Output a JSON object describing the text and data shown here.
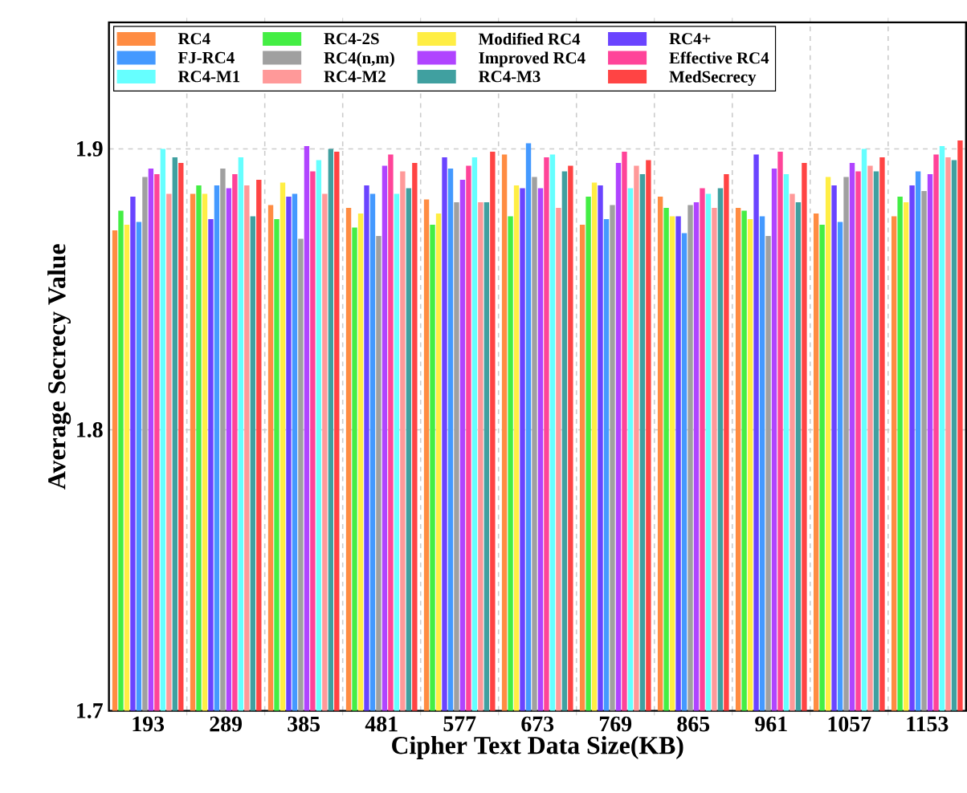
{
  "chart_data": {
    "type": "bar",
    "xlabel": "Cipher Text Data Size(KB)",
    "ylabel": "Average Secrecy Value",
    "categories": [
      "193",
      "289",
      "385",
      "481",
      "577",
      "673",
      "769",
      "865",
      "961",
      "1057",
      "1153"
    ],
    "ylim": [
      1.7,
      1.945
    ],
    "yticks": [
      1.7,
      1.8,
      1.9
    ],
    "grid": true,
    "legend": "top",
    "series": [
      {
        "name": "RC4",
        "color": "#ff8c42",
        "values": [
          1.871,
          1.884,
          1.88,
          1.879,
          1.882,
          1.898,
          1.873,
          1.883,
          1.879,
          1.877,
          1.876
        ]
      },
      {
        "name": "RC4-2S",
        "color": "#44ee44",
        "values": [
          1.878,
          1.887,
          1.875,
          1.872,
          1.873,
          1.876,
          1.883,
          1.879,
          1.878,
          1.873,
          1.883
        ]
      },
      {
        "name": "Modified RC4",
        "color": "#ffee44",
        "values": [
          1.873,
          1.884,
          1.888,
          1.877,
          1.877,
          1.887,
          1.888,
          1.876,
          1.875,
          1.89,
          1.881
        ]
      },
      {
        "name": "RC4+",
        "color": "#6a44ff",
        "values": [
          1.883,
          1.875,
          1.883,
          1.887,
          1.897,
          1.886,
          1.887,
          1.876,
          1.898,
          1.887,
          1.887
        ]
      },
      {
        "name": "FJ-RC4",
        "color": "#4499ff",
        "values": [
          1.874,
          1.887,
          1.884,
          1.884,
          1.893,
          1.902,
          1.875,
          1.87,
          1.876,
          1.874,
          1.892
        ]
      },
      {
        "name": "RC4(n,m)",
        "color": "#a0a0a0",
        "values": [
          1.89,
          1.893,
          1.868,
          1.869,
          1.881,
          1.89,
          1.88,
          1.88,
          1.869,
          1.89,
          1.885
        ]
      },
      {
        "name": "Improved RC4",
        "color": "#b044ff",
        "values": [
          1.893,
          1.886,
          1.901,
          1.894,
          1.889,
          1.886,
          1.895,
          1.881,
          1.893,
          1.895,
          1.891
        ]
      },
      {
        "name": "Effective RC4",
        "color": "#ff4499",
        "values": [
          1.891,
          1.891,
          1.892,
          1.898,
          1.894,
          1.897,
          1.899,
          1.886,
          1.899,
          1.892,
          1.898
        ]
      },
      {
        "name": "RC4-M1",
        "color": "#66ffff",
        "values": [
          1.9,
          1.897,
          1.896,
          1.884,
          1.897,
          1.898,
          1.886,
          1.884,
          1.891,
          1.9,
          1.901
        ]
      },
      {
        "name": "RC4-M2",
        "color": "#ff9999",
        "values": [
          1.884,
          1.887,
          1.884,
          1.892,
          1.881,
          1.879,
          1.894,
          1.879,
          1.884,
          1.894,
          1.897
        ]
      },
      {
        "name": "RC4-M3",
        "color": "#40a0a0",
        "values": [
          1.897,
          1.876,
          1.9,
          1.886,
          1.881,
          1.892,
          1.891,
          1.886,
          1.881,
          1.892,
          1.896
        ]
      },
      {
        "name": "MedSecrecy",
        "color": "#ff4444",
        "values": [
          1.895,
          1.889,
          1.899,
          1.895,
          1.899,
          1.894,
          1.896,
          1.891,
          1.895,
          1.897,
          1.903
        ]
      }
    ]
  }
}
